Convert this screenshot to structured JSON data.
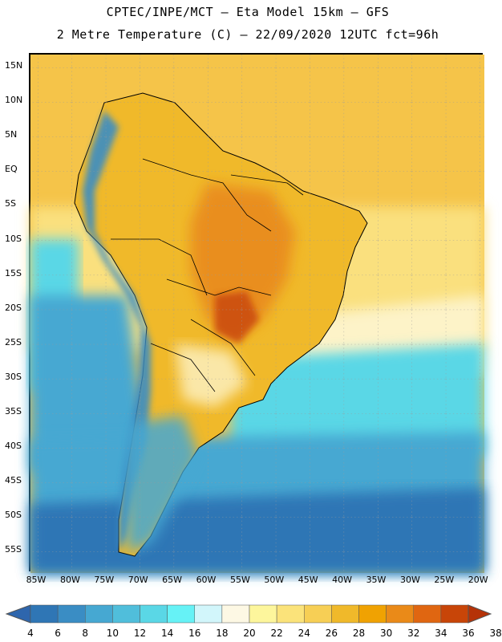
{
  "title_line1": "CPTEC/INPE/MCT –  Eta Model 15km – GFS",
  "title_line2": "2 Metre Temperature (C) – 22/09/2020 12UTC fct=96h",
  "lat_labels": [
    "15N",
    "10N",
    "5N",
    "EQ",
    "5S",
    "10S",
    "15S",
    "20S",
    "25S",
    "30S",
    "35S",
    "40S",
    "45S",
    "50S",
    "55S"
  ],
  "lon_labels": [
    "85W",
    "80W",
    "75W",
    "70W",
    "65W",
    "60W",
    "55W",
    "50W",
    "45W",
    "40W",
    "35W",
    "30W",
    "25W",
    "20W"
  ],
  "colorbar": {
    "labels": [
      "4",
      "6",
      "8",
      "10",
      "12",
      "14",
      "16",
      "18",
      "20",
      "22",
      "24",
      "26",
      "28",
      "30",
      "32",
      "34",
      "36",
      "38"
    ],
    "colors": [
      "#2e66ad",
      "#2f76b5",
      "#3a8dc4",
      "#46a8d2",
      "#50bedb",
      "#5ad7e6",
      "#66f2f6",
      "#d2f6fb",
      "#fdf8e4",
      "#fdf69c",
      "#fbe37a",
      "#f7cf55",
      "#f0b92a",
      "#f0a202",
      "#ea8a18",
      "#e06611",
      "#c84508",
      "#b53207"
    ]
  },
  "map": {
    "colors": {
      "ocean_tropical": "#f5c449",
      "ocean_warm": "#fae07e",
      "ocean_mild": "#fdf3c8",
      "ocean_cool": "#5ad7e6",
      "ocean_cold": "#46a8d2",
      "ocean_south": "#2f76b5",
      "land_hot": "#e8871e",
      "land_warm": "#f0b92a",
      "andes": "#3a8dc4"
    }
  }
}
